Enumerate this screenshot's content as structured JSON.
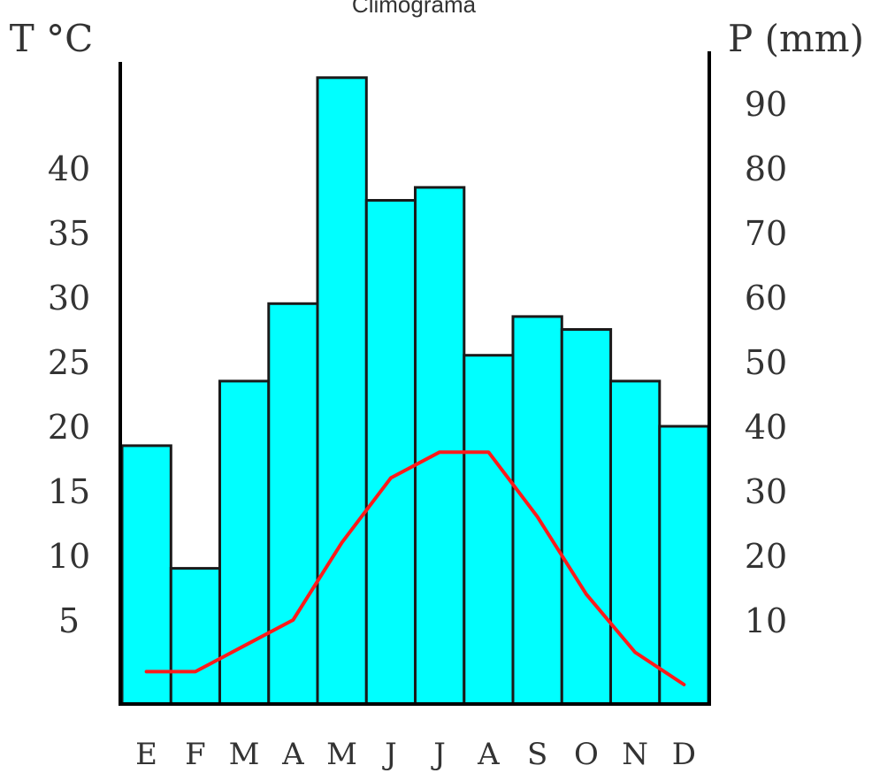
{
  "chart_data": {
    "type": "bar",
    "title": "Climograma",
    "categories": [
      "E",
      "F",
      "M",
      "A",
      "M",
      "J",
      "J",
      "A",
      "S",
      "O",
      "N",
      "D"
    ],
    "left_axis": {
      "label": "T °C",
      "ticks": [
        "5",
        "10",
        "15",
        "20",
        "25",
        "30",
        "35",
        "40"
      ],
      "range": [
        0,
        50
      ]
    },
    "right_axis": {
      "label": "P (mm)",
      "ticks": [
        "10",
        "20",
        "30",
        "40",
        "50",
        "60",
        "70",
        "80",
        "90"
      ],
      "range": [
        0,
        100
      ]
    },
    "series": [
      {
        "kind": "bar",
        "axis": "right",
        "values": [
          37,
          18,
          47,
          59,
          94,
          75,
          77,
          51,
          57,
          55,
          47,
          40
        ]
      },
      {
        "kind": "line",
        "axis": "left",
        "values": [
          1,
          1,
          3,
          5,
          11,
          16,
          18,
          18,
          13,
          7,
          2.5,
          0
        ]
      }
    ],
    "grid": false,
    "colors": {
      "bars": "#00ffff",
      "bar_edge": "#1a1a1a",
      "line": "#ff1a1a",
      "axis": "#000000"
    }
  }
}
